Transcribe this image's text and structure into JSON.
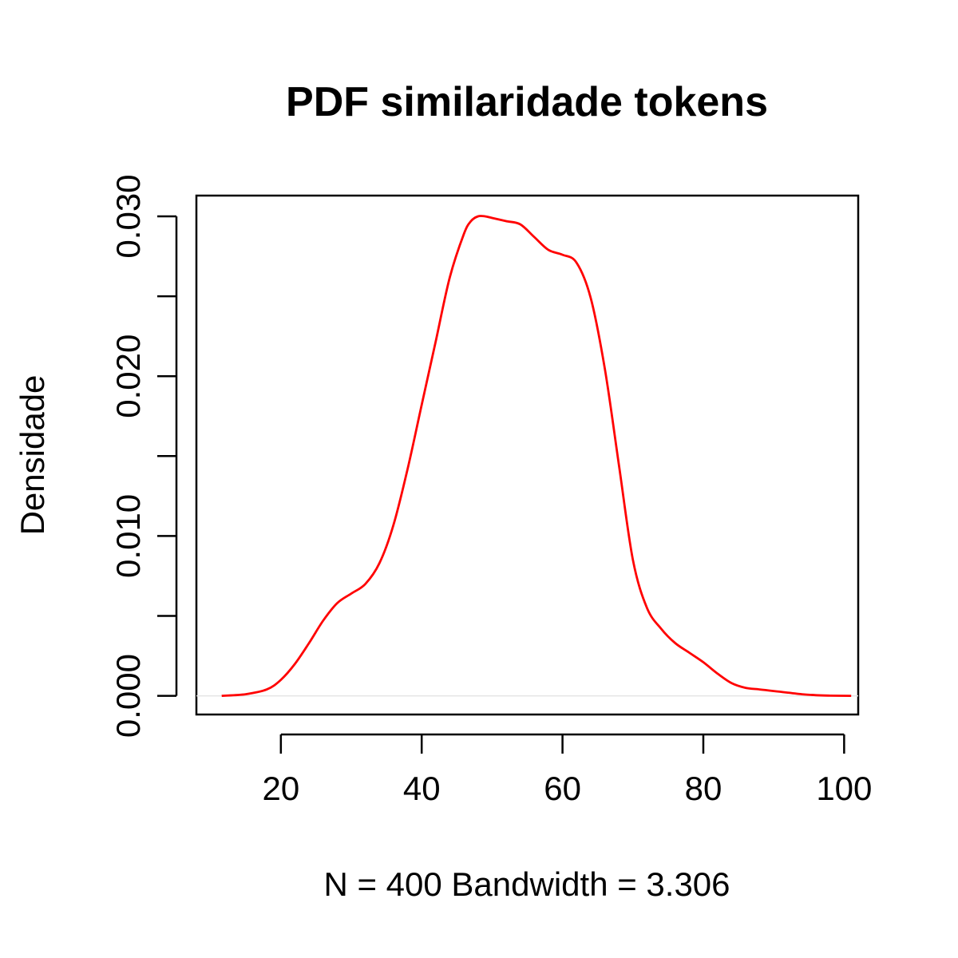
{
  "chart_data": {
    "type": "line",
    "title": "PDF similaridade tokens",
    "xlabel": "N = 400   Bandwidth = 3.306",
    "ylabel": "Densidade",
    "xlim": [
      8,
      102
    ],
    "ylim": [
      -0.00117,
      0.0313
    ],
    "x_ticks": [
      20,
      40,
      60,
      80,
      100
    ],
    "x_tick_labels": [
      "20",
      "40",
      "60",
      "80",
      "100"
    ],
    "y_ticks": [
      0.0,
      0.005,
      0.01,
      0.015,
      0.02,
      0.025,
      0.03
    ],
    "y_tick_labels": [
      "0.000",
      "",
      "0.010",
      "",
      "0.020",
      "",
      "0.030"
    ],
    "grid": false,
    "line_color": "#ff0000",
    "zero_line_color": "#e5e5e5",
    "series": [
      {
        "x": [
          11.6,
          15,
          18,
          20,
          22,
          24,
          26,
          28,
          30,
          32,
          34,
          36,
          38,
          40,
          42,
          44,
          46,
          47,
          48,
          49,
          50,
          52,
          54,
          56,
          58,
          60,
          62,
          64,
          66,
          68,
          70,
          72,
          74,
          76,
          78,
          80,
          82,
          84,
          86,
          88,
          90,
          92,
          94,
          96,
          98,
          101
        ],
        "y": [
          0.0,
          0.0001,
          0.0004,
          0.001,
          0.002,
          0.0033,
          0.0047,
          0.0058,
          0.0064,
          0.007,
          0.0083,
          0.0107,
          0.0142,
          0.0182,
          0.0222,
          0.0262,
          0.0289,
          0.0297,
          0.03,
          0.03,
          0.0299,
          0.0297,
          0.0295,
          0.0287,
          0.0279,
          0.0276,
          0.0271,
          0.0249,
          0.0205,
          0.0145,
          0.0085,
          0.0055,
          0.0042,
          0.0033,
          0.0027,
          0.0021,
          0.0014,
          0.0008,
          0.0005,
          0.0004,
          0.0003,
          0.0002,
          0.0001,
          4e-05,
          1e-05,
          0.0
        ]
      }
    ]
  }
}
